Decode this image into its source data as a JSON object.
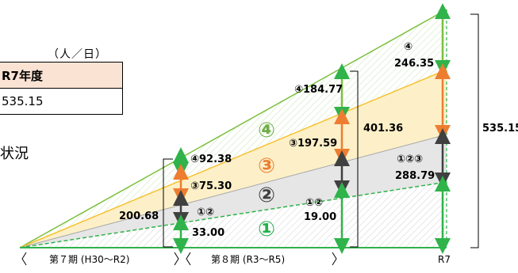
{
  "unit": "（人／日）",
  "table": {
    "header": "R7年度",
    "value": "535.15"
  },
  "status_fragment": "状況",
  "zones": {
    "z1": "①",
    "z2": "②",
    "z3": "③",
    "z4": "④"
  },
  "labels": {
    "r7_4_mark": "④",
    "r7_4_val": "246.35",
    "mid_4": "④184.77",
    "mid_3": "③197.59",
    "mid_12_mark": "①②",
    "mid_12_val": "19.00",
    "bracket_mid": "401.36",
    "r7_123_mark": "①②③",
    "r7_123_val": "288.79",
    "total_r7": "535.15",
    "left_4": "④92.38",
    "left_3": "③75.30",
    "left_12_mark": "①②",
    "left_12_val": "33.00",
    "left_total": "200.68"
  },
  "axis": {
    "period7": "第７期 (H30～R2)",
    "period8": "第８期 (R3～R5)",
    "r7": "R7"
  },
  "colors": {
    "zone1_line": "#2fb34a",
    "zone2_fill": "#e6e6e6",
    "zone3_fill": "#fdf0c8",
    "zone3_line": "#f6c233",
    "zone4_line": "#7cbf3e",
    "green_arrow": "#2fb34a",
    "orange_arrow": "#ed7d31",
    "gray_arrow": "#404040",
    "zone3_text": "#ed7d31",
    "zone4_text": "#70ad47",
    "zone2_text": "#404040",
    "zone1_text": "#22b14c"
  }
}
